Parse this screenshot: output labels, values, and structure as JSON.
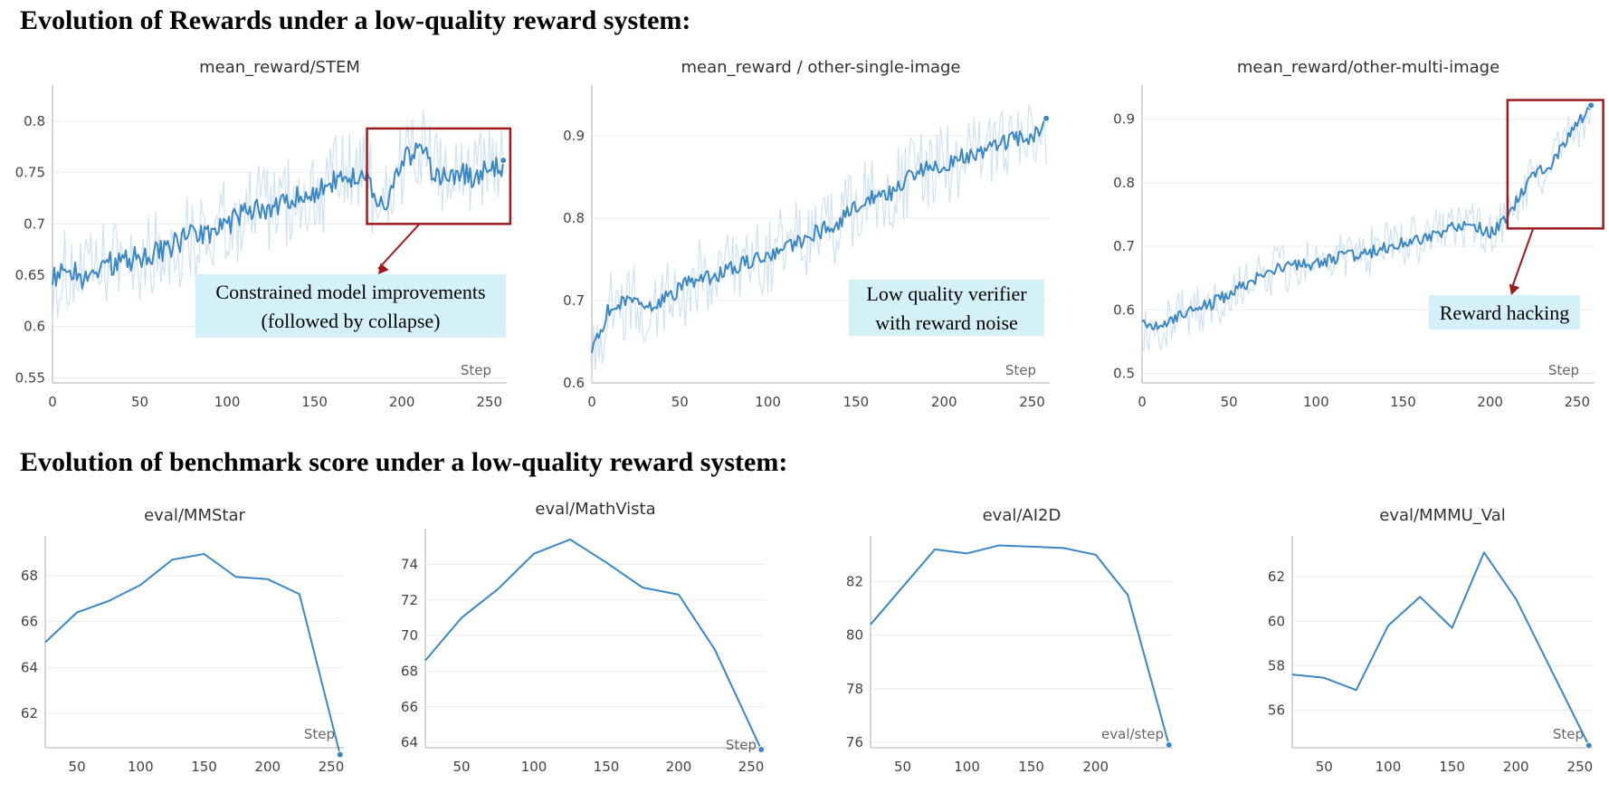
{
  "sections": {
    "rewards_title": "Evolution of Rewards under a low-quality reward system:",
    "bench_title": "Evolution of benchmark score under a low-quality reward system:"
  },
  "colors": {
    "line": "#3b87c4",
    "raw": "#cfe2f3",
    "highlight_box": "#9b1b1f",
    "annotation_bg": "#d4f1f9",
    "grid": "#ececec"
  },
  "chart_data": [
    {
      "type": "line",
      "title": "mean_reward/STEM",
      "xlabel": "Step",
      "xlim": [
        0,
        260
      ],
      "ylim": [
        0.545,
        0.83
      ],
      "xticks": [
        0,
        50,
        100,
        150,
        200,
        250
      ],
      "yticks": [
        0.55,
        0.6,
        0.65,
        0.7,
        0.75,
        0.8
      ],
      "ytick_labels": [
        "0.55",
        "0.6",
        "0.65",
        "0.7",
        "0.75",
        "0.8"
      ],
      "series": [
        {
          "kind": "smoothed",
          "x": [
            0,
            10,
            20,
            30,
            40,
            50,
            60,
            70,
            80,
            90,
            100,
            110,
            120,
            130,
            140,
            150,
            160,
            170,
            180,
            185,
            190,
            200,
            210,
            220,
            230,
            240,
            250,
            258
          ],
          "y": [
            0.645,
            0.655,
            0.645,
            0.66,
            0.665,
            0.668,
            0.672,
            0.68,
            0.688,
            0.69,
            0.7,
            0.712,
            0.716,
            0.718,
            0.725,
            0.73,
            0.74,
            0.745,
            0.752,
            0.725,
            0.715,
            0.76,
            0.775,
            0.745,
            0.75,
            0.745,
            0.755,
            0.755
          ],
          "noise": 0.012,
          "raw_noise": 0.045,
          "end_marker": true
        }
      ],
      "highlight": {
        "x": [
          180,
          262
        ],
        "y": [
          0.7,
          0.793
        ]
      },
      "annotation": {
        "lines": [
          "Constrained model improvements",
          "(followed by collapse)"
        ]
      }
    },
    {
      "type": "line",
      "title": "mean_reward / other-single-image",
      "xlabel": "Step",
      "xlim": [
        0,
        260
      ],
      "ylim": [
        0.6,
        0.955
      ],
      "xticks": [
        0,
        50,
        100,
        150,
        200,
        250
      ],
      "yticks": [
        0.6,
        0.7,
        0.8,
        0.9
      ],
      "ytick_labels": [
        "0.6",
        "0.7",
        "0.8",
        "0.9"
      ],
      "series": [
        {
          "kind": "smoothed",
          "x": [
            0,
            10,
            20,
            30,
            40,
            50,
            60,
            70,
            80,
            90,
            100,
            110,
            120,
            130,
            140,
            150,
            160,
            170,
            180,
            190,
            200,
            210,
            220,
            230,
            240,
            250,
            258
          ],
          "y": [
            0.645,
            0.69,
            0.7,
            0.69,
            0.7,
            0.715,
            0.725,
            0.73,
            0.74,
            0.75,
            0.755,
            0.765,
            0.775,
            0.785,
            0.795,
            0.815,
            0.825,
            0.83,
            0.85,
            0.86,
            0.865,
            0.875,
            0.88,
            0.89,
            0.895,
            0.9,
            0.915
          ],
          "noise": 0.01,
          "raw_noise": 0.05,
          "end_marker": true
        }
      ],
      "annotation": {
        "lines": [
          "Low quality verifier",
          "with reward noise"
        ]
      }
    },
    {
      "type": "line",
      "title": "mean_reward/other-multi-image",
      "xlabel": "Step",
      "xlim": [
        0,
        260
      ],
      "ylim": [
        0.485,
        0.945
      ],
      "xticks": [
        0,
        50,
        100,
        150,
        200,
        250
      ],
      "yticks": [
        0.5,
        0.6,
        0.7,
        0.8,
        0.9
      ],
      "ytick_labels": [
        "0.5",
        "0.6",
        "0.7",
        "0.8",
        "0.9"
      ],
      "series": [
        {
          "kind": "smoothed",
          "x": [
            0,
            10,
            20,
            30,
            40,
            50,
            60,
            70,
            80,
            90,
            100,
            110,
            120,
            130,
            140,
            150,
            160,
            170,
            180,
            190,
            200,
            207,
            215,
            225,
            235,
            245,
            255,
            258
          ],
          "y": [
            0.575,
            0.57,
            0.59,
            0.6,
            0.61,
            0.625,
            0.64,
            0.655,
            0.665,
            0.67,
            0.672,
            0.68,
            0.685,
            0.69,
            0.698,
            0.705,
            0.71,
            0.72,
            0.73,
            0.735,
            0.72,
            0.735,
            0.77,
            0.81,
            0.83,
            0.87,
            0.91,
            0.915
          ],
          "noise": 0.01,
          "raw_noise": 0.04,
          "end_marker": true
        }
      ],
      "highlight": {
        "x": [
          210,
          265
        ],
        "y": [
          0.728,
          0.93
        ]
      },
      "annotation": {
        "lines": [
          "Reward hacking"
        ]
      }
    },
    {
      "type": "line",
      "title": "eval/MMStar",
      "xlabel": "Step",
      "xlim": [
        25,
        260
      ],
      "ylim": [
        60.5,
        69.5
      ],
      "xticks": [
        50,
        100,
        150,
        200,
        250
      ],
      "yticks": [
        62,
        64,
        66,
        68
      ],
      "ytick_labels": [
        "62",
        "64",
        "66",
        "68"
      ],
      "series": [
        {
          "x": [
            25,
            50,
            75,
            100,
            125,
            150,
            175,
            200,
            225,
            257
          ],
          "y": [
            65.1,
            66.4,
            66.9,
            67.6,
            68.7,
            68.95,
            67.95,
            67.85,
            67.2,
            60.2
          ],
          "end_marker": true
        }
      ]
    },
    {
      "type": "line",
      "title": "eval/MathVista",
      "xlabel": "Step",
      "xlim": [
        25,
        260
      ],
      "ylim": [
        63.7,
        75.7
      ],
      "xticks": [
        50,
        100,
        150,
        200,
        250
      ],
      "yticks": [
        64,
        66,
        68,
        70,
        72,
        74
      ],
      "ytick_labels": [
        "64",
        "66",
        "68",
        "70",
        "72",
        "74"
      ],
      "series": [
        {
          "x": [
            25,
            50,
            75,
            100,
            125,
            150,
            175,
            200,
            225,
            257
          ],
          "y": [
            68.6,
            71.0,
            72.6,
            74.6,
            75.4,
            74.1,
            72.7,
            72.3,
            69.2,
            63.6
          ],
          "end_marker": true
        }
      ]
    },
    {
      "type": "line",
      "title": "eval/AI2D",
      "xlabel": "eval/step",
      "xlim": [
        25,
        260
      ],
      "ylim": [
        75.8,
        83.5
      ],
      "xticks": [
        50,
        100,
        150,
        200
      ],
      "yticks": [
        76,
        78,
        80,
        82
      ],
      "ytick_labels": [
        "76",
        "78",
        "80",
        "82"
      ],
      "series": [
        {
          "x": [
            25,
            50,
            75,
            100,
            125,
            150,
            175,
            200,
            225,
            257
          ],
          "y": [
            80.4,
            81.8,
            83.2,
            83.05,
            83.35,
            83.3,
            83.25,
            83.0,
            81.5,
            75.9
          ],
          "end_marker": true
        }
      ]
    },
    {
      "type": "line",
      "title": "eval/MMMU_Val",
      "xlabel": "Step",
      "xlim": [
        25,
        260
      ],
      "ylim": [
        54.3,
        63.6
      ],
      "xticks": [
        50,
        100,
        150,
        200,
        250
      ],
      "yticks": [
        56,
        58,
        60,
        62
      ],
      "ytick_labels": [
        "56",
        "58",
        "60",
        "62"
      ],
      "series": [
        {
          "x": [
            25,
            50,
            75,
            100,
            125,
            150,
            175,
            200,
            225,
            257
          ],
          "y": [
            57.6,
            57.45,
            56.9,
            59.8,
            61.1,
            59.7,
            63.1,
            61.0,
            58.1,
            54.4
          ],
          "end_marker": true
        }
      ]
    }
  ]
}
